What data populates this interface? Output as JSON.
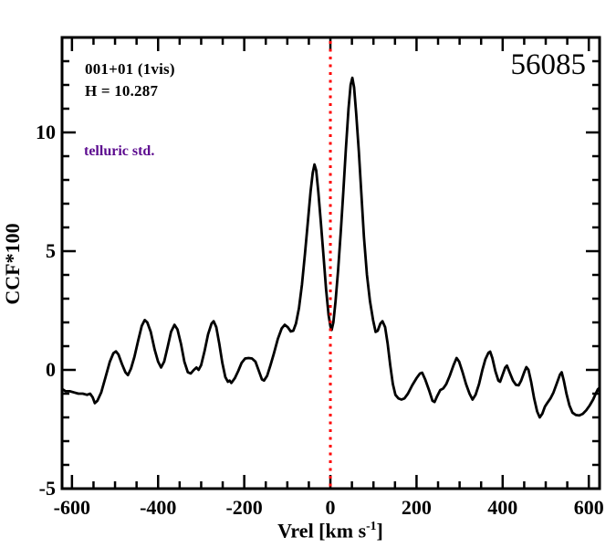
{
  "header": {
    "title": "56085"
  },
  "annotations": {
    "field_label": "001+01 (1vis)",
    "h_magnitude": "H = 10.287",
    "telluric_note": "telluric std.",
    "telluric_color": "#5c0b8f"
  },
  "axes": {
    "ylabel": "CCF*100",
    "xlabel_pre": "Vrel [km s",
    "xlabel_sup": "-1",
    "xlabel_post": "]"
  },
  "chart_data": {
    "type": "line",
    "title": "56085",
    "xlabel": "Vrel [km s^-1]",
    "ylabel": "CCF*100",
    "xlim": [
      -623,
      625
    ],
    "ylim": [
      -5,
      14
    ],
    "grid": false,
    "frame_color": "#000000",
    "x_major_ticks": [
      -600,
      -400,
      -200,
      0,
      200,
      400,
      600
    ],
    "x_minor_step": 50,
    "y_major_ticks": [
      -5,
      0,
      5,
      10
    ],
    "y_minor_step": 1,
    "reference_line": {
      "x": 0,
      "color": "#ff0000",
      "style": "dotted"
    },
    "series": [
      {
        "name": "ccf",
        "color": "#000000",
        "points": [
          [
            -623,
            -0.8
          ],
          [
            -615,
            -0.9
          ],
          [
            -605,
            -0.9
          ],
          [
            -595,
            -0.95
          ],
          [
            -585,
            -1.0
          ],
          [
            -575,
            -1.0
          ],
          [
            -565,
            -1.05
          ],
          [
            -558,
            -1.0
          ],
          [
            -552,
            -1.15
          ],
          [
            -547,
            -1.4
          ],
          [
            -541,
            -1.3
          ],
          [
            -532,
            -0.95
          ],
          [
            -522,
            -0.3
          ],
          [
            -512,
            0.35
          ],
          [
            -504,
            0.7
          ],
          [
            -498,
            0.78
          ],
          [
            -492,
            0.65
          ],
          [
            -484,
            0.25
          ],
          [
            -476,
            -0.1
          ],
          [
            -470,
            -0.22
          ],
          [
            -463,
            0.05
          ],
          [
            -455,
            0.55
          ],
          [
            -446,
            1.25
          ],
          [
            -438,
            1.85
          ],
          [
            -431,
            2.1
          ],
          [
            -425,
            2.0
          ],
          [
            -417,
            1.6
          ],
          [
            -408,
            0.85
          ],
          [
            -400,
            0.35
          ],
          [
            -393,
            0.1
          ],
          [
            -386,
            0.35
          ],
          [
            -378,
            0.95
          ],
          [
            -370,
            1.6
          ],
          [
            -362,
            1.9
          ],
          [
            -355,
            1.7
          ],
          [
            -347,
            1.1
          ],
          [
            -339,
            0.35
          ],
          [
            -331,
            -0.1
          ],
          [
            -324,
            -0.15
          ],
          [
            -317,
            0.0
          ],
          [
            -311,
            0.1
          ],
          [
            -306,
            0.0
          ],
          [
            -300,
            0.2
          ],
          [
            -292,
            0.8
          ],
          [
            -284,
            1.5
          ],
          [
            -276,
            1.95
          ],
          [
            -271,
            2.05
          ],
          [
            -265,
            1.8
          ],
          [
            -258,
            1.1
          ],
          [
            -251,
            0.3
          ],
          [
            -244,
            -0.3
          ],
          [
            -238,
            -0.5
          ],
          [
            -234,
            -0.45
          ],
          [
            -230,
            -0.55
          ],
          [
            -222,
            -0.35
          ],
          [
            -214,
            -0.05
          ],
          [
            -206,
            0.3
          ],
          [
            -198,
            0.48
          ],
          [
            -190,
            0.5
          ],
          [
            -182,
            0.48
          ],
          [
            -174,
            0.35
          ],
          [
            -166,
            -0.05
          ],
          [
            -159,
            -0.4
          ],
          [
            -154,
            -0.45
          ],
          [
            -147,
            -0.25
          ],
          [
            -139,
            0.2
          ],
          [
            -131,
            0.7
          ],
          [
            -122,
            1.3
          ],
          [
            -113,
            1.75
          ],
          [
            -106,
            1.9
          ],
          [
            -99,
            1.8
          ],
          [
            -92,
            1.62
          ],
          [
            -86,
            1.65
          ],
          [
            -80,
            1.95
          ],
          [
            -73,
            2.6
          ],
          [
            -66,
            3.6
          ],
          [
            -59,
            4.9
          ],
          [
            -52,
            6.3
          ],
          [
            -46,
            7.5
          ],
          [
            -41,
            8.3
          ],
          [
            -37,
            8.65
          ],
          [
            -33,
            8.4
          ],
          [
            -28,
            7.5
          ],
          [
            -22,
            6.2
          ],
          [
            -16,
            4.8
          ],
          [
            -10,
            3.4
          ],
          [
            -4,
            2.3
          ],
          [
            0,
            1.85
          ],
          [
            3,
            1.68
          ],
          [
            7,
            2.0
          ],
          [
            12,
            2.9
          ],
          [
            18,
            4.2
          ],
          [
            24,
            5.8
          ],
          [
            30,
            7.5
          ],
          [
            36,
            9.3
          ],
          [
            42,
            11.0
          ],
          [
            47,
            12.0
          ],
          [
            51,
            12.3
          ],
          [
            55,
            11.9
          ],
          [
            60,
            10.8
          ],
          [
            66,
            9.2
          ],
          [
            72,
            7.4
          ],
          [
            78,
            5.6
          ],
          [
            85,
            4.0
          ],
          [
            92,
            2.9
          ],
          [
            99,
            2.1
          ],
          [
            105,
            1.6
          ],
          [
            110,
            1.65
          ],
          [
            116,
            1.95
          ],
          [
            121,
            2.05
          ],
          [
            127,
            1.8
          ],
          [
            133,
            1.1
          ],
          [
            139,
            0.2
          ],
          [
            145,
            -0.6
          ],
          [
            151,
            -1.05
          ],
          [
            158,
            -1.2
          ],
          [
            165,
            -1.25
          ],
          [
            172,
            -1.2
          ],
          [
            180,
            -1.0
          ],
          [
            190,
            -0.65
          ],
          [
            200,
            -0.35
          ],
          [
            208,
            -0.15
          ],
          [
            213,
            -0.12
          ],
          [
            220,
            -0.4
          ],
          [
            229,
            -0.85
          ],
          [
            237,
            -1.3
          ],
          [
            242,
            -1.35
          ],
          [
            248,
            -1.1
          ],
          [
            255,
            -0.85
          ],
          [
            262,
            -0.78
          ],
          [
            269,
            -0.6
          ],
          [
            277,
            -0.25
          ],
          [
            286,
            0.2
          ],
          [
            293,
            0.5
          ],
          [
            299,
            0.35
          ],
          [
            307,
            -0.1
          ],
          [
            315,
            -0.6
          ],
          [
            323,
            -1.0
          ],
          [
            330,
            -1.25
          ],
          [
            337,
            -1.05
          ],
          [
            345,
            -0.6
          ],
          [
            353,
            0.0
          ],
          [
            360,
            0.45
          ],
          [
            367,
            0.72
          ],
          [
            371,
            0.77
          ],
          [
            376,
            0.5
          ],
          [
            383,
            -0.05
          ],
          [
            390,
            -0.45
          ],
          [
            394,
            -0.5
          ],
          [
            400,
            -0.2
          ],
          [
            406,
            0.1
          ],
          [
            410,
            0.18
          ],
          [
            416,
            -0.1
          ],
          [
            424,
            -0.45
          ],
          [
            431,
            -0.63
          ],
          [
            437,
            -0.65
          ],
          [
            443,
            -0.45
          ],
          [
            450,
            -0.1
          ],
          [
            455,
            0.12
          ],
          [
            460,
            0.0
          ],
          [
            466,
            -0.5
          ],
          [
            473,
            -1.2
          ],
          [
            480,
            -1.75
          ],
          [
            486,
            -2.0
          ],
          [
            492,
            -1.85
          ],
          [
            498,
            -1.55
          ],
          [
            504,
            -1.38
          ],
          [
            511,
            -1.2
          ],
          [
            518,
            -0.95
          ],
          [
            526,
            -0.55
          ],
          [
            533,
            -0.2
          ],
          [
            537,
            -0.1
          ],
          [
            542,
            -0.45
          ],
          [
            548,
            -1.0
          ],
          [
            555,
            -1.5
          ],
          [
            562,
            -1.8
          ],
          [
            570,
            -1.9
          ],
          [
            578,
            -1.92
          ],
          [
            586,
            -1.85
          ],
          [
            594,
            -1.7
          ],
          [
            602,
            -1.5
          ],
          [
            610,
            -1.25
          ],
          [
            616,
            -1.0
          ],
          [
            621,
            -0.82
          ],
          [
            625,
            -0.75
          ]
        ]
      }
    ]
  }
}
